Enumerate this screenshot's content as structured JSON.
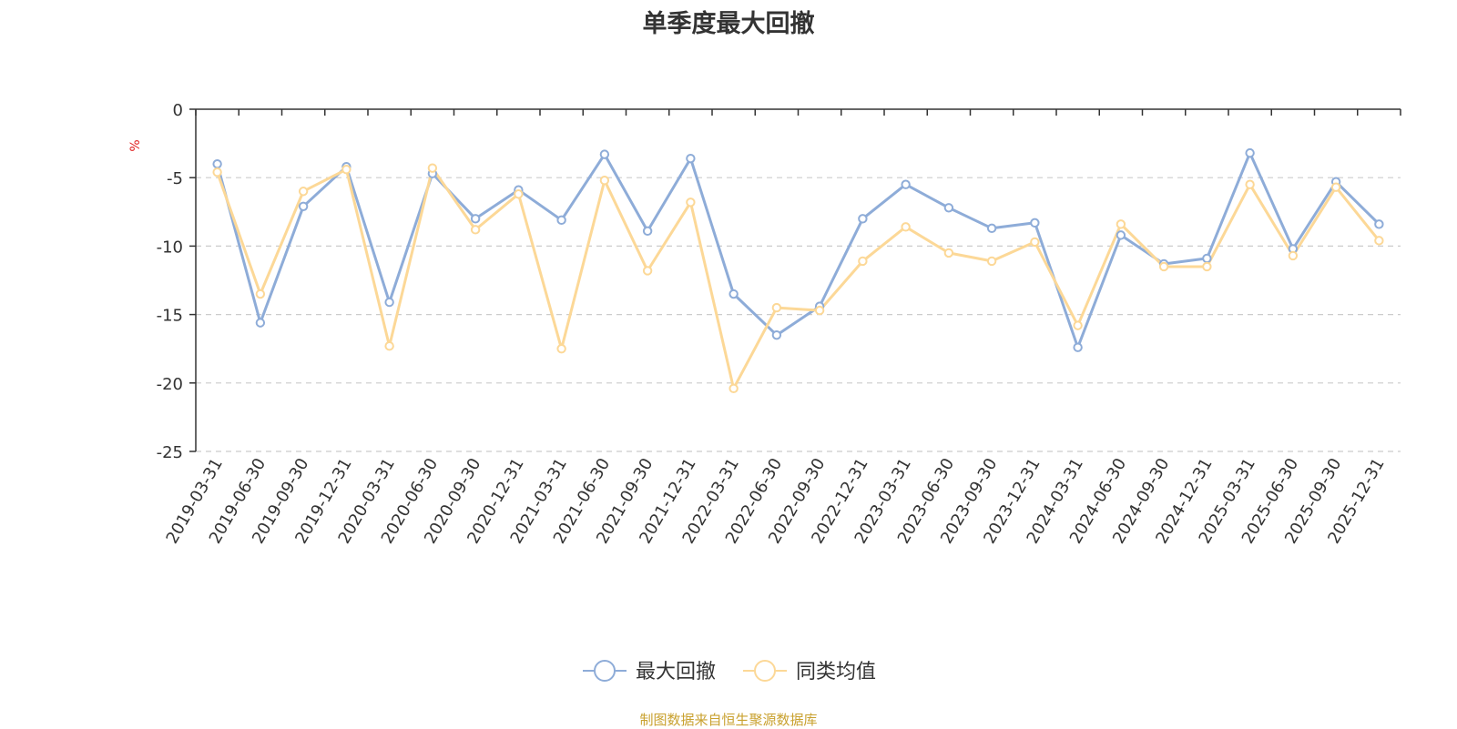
{
  "title": "单季度最大回撤",
  "source_note": "制图数据来自恒生聚源数据库",
  "colors": {
    "series1": "#8eacd8",
    "series2": "#fcd897",
    "axis": "#333333",
    "grid": "#cccccc",
    "unit": "#e02020",
    "source": "#c9a12f"
  },
  "chart_data": {
    "type": "line",
    "title": "单季度最大回撤",
    "ylabel": "%",
    "ylim": [
      -25,
      0
    ],
    "yticks": [
      0,
      -5,
      -10,
      -15,
      -20,
      -25
    ],
    "grid": "horizontal dashed",
    "legend_position": "bottom-center",
    "categories": [
      "2019-03-31",
      "2019-06-30",
      "2019-09-30",
      "2019-12-31",
      "2020-03-31",
      "2020-06-30",
      "2020-09-30",
      "2020-12-31",
      "2021-03-31",
      "2021-06-30",
      "2021-09-30",
      "2021-12-31",
      "2022-03-31",
      "2022-06-30",
      "2022-09-30",
      "2022-12-31",
      "2023-03-31",
      "2023-06-30",
      "2023-09-30",
      "2023-12-31",
      "2024-03-31",
      "2024-06-30",
      "2024-09-30",
      "2024-12-31",
      "2025-03-31",
      "2025-06-30",
      "2025-09-30",
      "2025-12-31"
    ],
    "series": [
      {
        "name": "最大回撤",
        "color": "#8eacd8",
        "values": [
          -4.0,
          -15.6,
          -7.1,
          -4.2,
          -14.1,
          -4.7,
          -8.0,
          -5.9,
          -8.1,
          -3.3,
          -8.9,
          -3.6,
          -13.5,
          -16.5,
          -14.4,
          -8.0,
          -5.5,
          -7.2,
          -8.7,
          -8.3,
          -17.4,
          -9.2,
          -11.3,
          -10.9,
          -3.2,
          -10.2,
          -5.3,
          -8.4
        ]
      },
      {
        "name": "同类均值",
        "color": "#fcd897",
        "values": [
          -4.6,
          -13.5,
          -6.0,
          -4.4,
          -17.3,
          -4.3,
          -8.8,
          -6.2,
          -17.5,
          -5.2,
          -11.8,
          -6.8,
          -20.4,
          -14.5,
          -14.7,
          -11.1,
          -8.6,
          -10.5,
          -11.1,
          -9.7,
          -15.8,
          -8.4,
          -11.5,
          -11.5,
          -5.5,
          -10.7,
          -5.7,
          -9.6
        ]
      }
    ]
  }
}
